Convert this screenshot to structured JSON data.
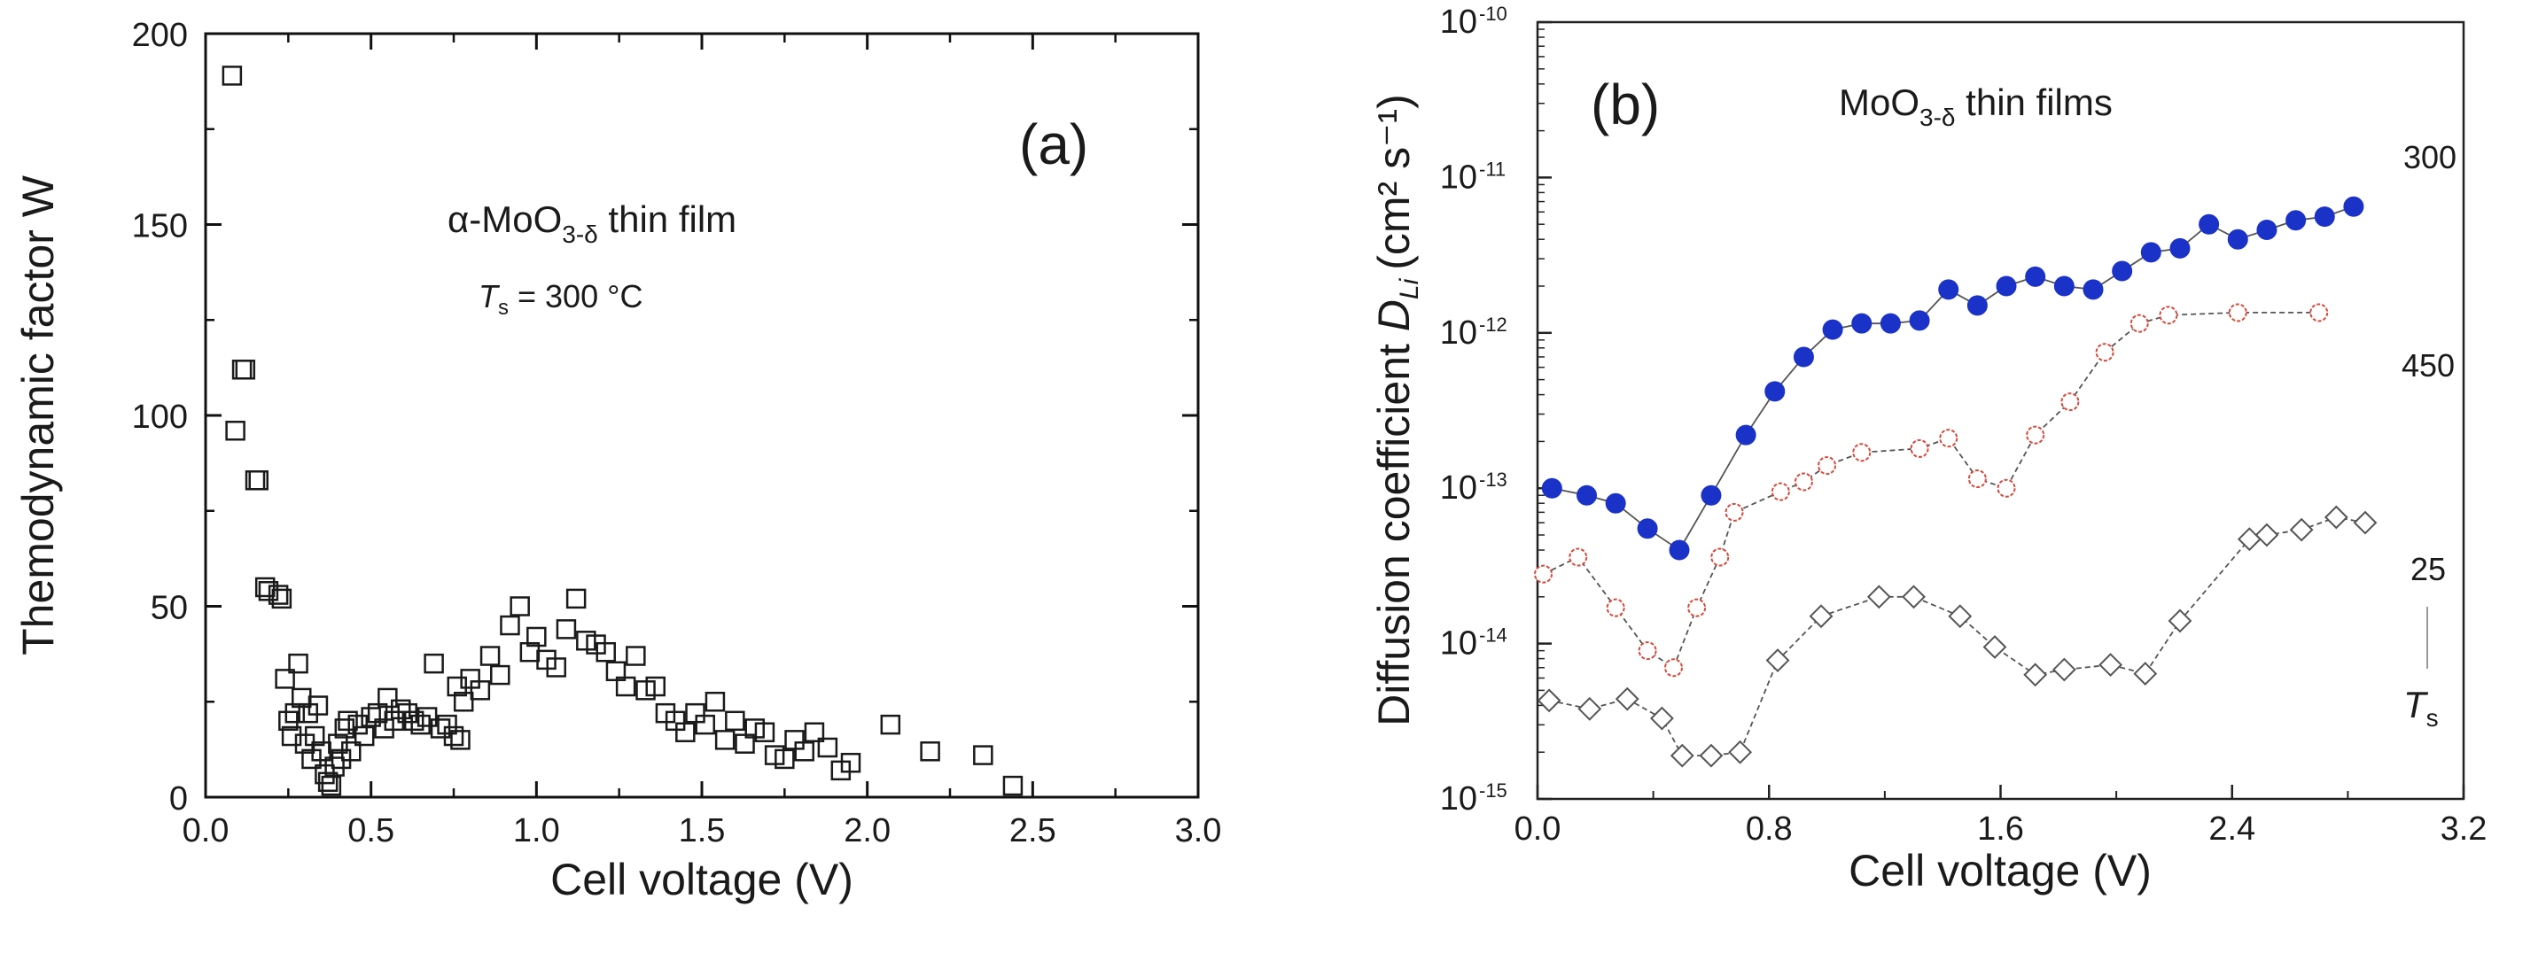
{
  "chart_data": [
    {
      "type": "scatter",
      "panel_label": "(a)",
      "title": "",
      "xlabel": "Cell voltage (V)",
      "ylabel": "Themodynamic factor W",
      "xlim": [
        0.0,
        3.0
      ],
      "ylim": [
        0,
        200
      ],
      "x_ticks": [
        "0.0",
        "0.5",
        "1.0",
        "1.5",
        "2.0",
        "2.5",
        "3.0"
      ],
      "y_ticks": [
        "0",
        "50",
        "100",
        "150",
        "200"
      ],
      "annotation": {
        "prefix": "α-MoO",
        "sub": "3-δ",
        "suffix": " thin film"
      },
      "ts_annotation": {
        "symbol": "T",
        "sub": "s",
        "value": " = 300 °C"
      },
      "marker": "open-square",
      "series": [
        {
          "name": "W",
          "points": [
            [
              0.08,
              189
            ],
            [
              0.09,
              96
            ],
            [
              0.11,
              112
            ],
            [
              0.12,
              112
            ],
            [
              0.15,
              83
            ],
            [
              0.16,
              83
            ],
            [
              0.18,
              55
            ],
            [
              0.19,
              54
            ],
            [
              0.22,
              53
            ],
            [
              0.23,
              52
            ],
            [
              0.24,
              31
            ],
            [
              0.25,
              20
            ],
            [
              0.26,
              16
            ],
            [
              0.27,
              22
            ],
            [
              0.28,
              35
            ],
            [
              0.29,
              26
            ],
            [
              0.3,
              14
            ],
            [
              0.31,
              22
            ],
            [
              0.32,
              10
            ],
            [
              0.33,
              16
            ],
            [
              0.34,
              24
            ],
            [
              0.35,
              12
            ],
            [
              0.36,
              6
            ],
            [
              0.37,
              4
            ],
            [
              0.38,
              3
            ],
            [
              0.39,
              8
            ],
            [
              0.4,
              14
            ],
            [
              0.41,
              10
            ],
            [
              0.42,
              18
            ],
            [
              0.43,
              20
            ],
            [
              0.44,
              12
            ],
            [
              0.46,
              19
            ],
            [
              0.48,
              16
            ],
            [
              0.5,
              21
            ],
            [
              0.52,
              22
            ],
            [
              0.54,
              18
            ],
            [
              0.55,
              26
            ],
            [
              0.57,
              20
            ],
            [
              0.59,
              23
            ],
            [
              0.61,
              22
            ],
            [
              0.63,
              20
            ],
            [
              0.65,
              19
            ],
            [
              0.67,
              21
            ],
            [
              0.69,
              35
            ],
            [
              0.71,
              18
            ],
            [
              0.73,
              19
            ],
            [
              0.75,
              16
            ],
            [
              0.77,
              15
            ],
            [
              0.76,
              29
            ],
            [
              0.78,
              25
            ],
            [
              0.8,
              31
            ],
            [
              0.83,
              28
            ],
            [
              0.86,
              37
            ],
            [
              0.89,
              32
            ],
            [
              0.92,
              45
            ],
            [
              0.95,
              50
            ],
            [
              0.98,
              38
            ],
            [
              1.0,
              42
            ],
            [
              1.03,
              36
            ],
            [
              1.06,
              34
            ],
            [
              1.09,
              44
            ],
            [
              1.12,
              52
            ],
            [
              1.15,
              41
            ],
            [
              1.18,
              40
            ],
            [
              1.21,
              38
            ],
            [
              1.24,
              33
            ],
            [
              1.27,
              29
            ],
            [
              1.3,
              37
            ],
            [
              1.33,
              28
            ],
            [
              1.36,
              29
            ],
            [
              1.39,
              22
            ],
            [
              1.42,
              20
            ],
            [
              1.45,
              17
            ],
            [
              1.48,
              22
            ],
            [
              1.51,
              19
            ],
            [
              1.54,
              25
            ],
            [
              1.57,
              15
            ],
            [
              1.6,
              20
            ],
            [
              1.63,
              14
            ],
            [
              1.66,
              18
            ],
            [
              1.69,
              17
            ],
            [
              1.72,
              11
            ],
            [
              1.75,
              10
            ],
            [
              1.78,
              15
            ],
            [
              1.81,
              12
            ],
            [
              1.84,
              17
            ],
            [
              1.88,
              13
            ],
            [
              1.92,
              7
            ],
            [
              1.95,
              9
            ],
            [
              2.07,
              19
            ],
            [
              2.19,
              12
            ],
            [
              2.35,
              11
            ],
            [
              2.44,
              3
            ]
          ]
        }
      ]
    },
    {
      "type": "line",
      "panel_label": "(b)",
      "title": "",
      "xlabel": "Cell voltage (V)",
      "ylabel": {
        "prefix": "Diffusion coefficient ",
        "var": "D",
        "var_sub": "Li",
        "units": "(cm² s⁻¹)"
      },
      "x_scale": "linear",
      "y_scale": "log",
      "xlim": [
        0.0,
        3.2
      ],
      "ylim": [
        1e-15,
        1e-10
      ],
      "x_ticks": [
        "0.0",
        "0.8",
        "1.6",
        "2.4",
        "3.2"
      ],
      "y_ticks": [
        {
          "base": "10",
          "exp": "-15"
        },
        {
          "base": "10",
          "exp": "-14"
        },
        {
          "base": "10",
          "exp": "-13"
        },
        {
          "base": "10",
          "exp": "-12"
        },
        {
          "base": "10",
          "exp": "-11"
        },
        {
          "base": "10",
          "exp": "-10"
        }
      ],
      "annotation": {
        "prefix": "MoO",
        "sub": "3-δ",
        "suffix": " thin films"
      },
      "ts_label": {
        "symbol": "T",
        "sub": "s"
      },
      "series": [
        {
          "name": "300",
          "marker": "filled-circle",
          "color": "#1a32c8",
          "x": [
            0.05,
            0.17,
            0.27,
            0.38,
            0.49,
            0.6,
            0.72,
            0.82,
            0.92,
            1.02,
            1.12,
            1.22,
            1.32,
            1.42,
            1.52,
            1.62,
            1.72,
            1.82,
            1.92,
            2.02,
            2.12,
            2.22,
            2.32,
            2.42,
            2.52,
            2.62,
            2.72,
            2.82
          ],
          "y": [
            1e-13,
            9e-14,
            8e-14,
            5.5e-14,
            4e-14,
            9e-14,
            2.2e-13,
            4.2e-13,
            7e-13,
            1.05e-12,
            1.15e-12,
            1.15e-12,
            1.2e-12,
            1.9e-12,
            1.5e-12,
            2e-12,
            2.3e-12,
            2e-12,
            1.9e-12,
            2.5e-12,
            3.3e-12,
            3.5e-12,
            5e-12,
            4e-12,
            4.6e-12,
            5.3e-12,
            5.6e-12,
            6.5e-12
          ]
        },
        {
          "name": "450",
          "marker": "open-circle",
          "color": "#d44a3c",
          "x": [
            0.02,
            0.14,
            0.27,
            0.38,
            0.47,
            0.55,
            0.63,
            0.68,
            0.84,
            0.92,
            1.0,
            1.12,
            1.32,
            1.42,
            1.52,
            1.62,
            1.72,
            1.84,
            1.96,
            2.08,
            2.18,
            2.42,
            2.7
          ],
          "y": [
            2.8e-14,
            3.6e-14,
            1.7e-14,
            9e-15,
            7e-15,
            1.7e-14,
            3.6e-14,
            7e-14,
            9.5e-14,
            1.1e-13,
            1.4e-13,
            1.7e-13,
            1.8e-13,
            2.1e-13,
            1.15e-13,
            1e-13,
            2.2e-13,
            3.6e-13,
            7.5e-13,
            1.15e-12,
            1.3e-12,
            1.35e-12,
            1.35e-12
          ]
        },
        {
          "name": "25",
          "marker": "open-diamond",
          "color": "#555555",
          "x": [
            0.04,
            0.18,
            0.31,
            0.43,
            0.5,
            0.6,
            0.7,
            0.83,
            0.98,
            1.18,
            1.3,
            1.46,
            1.58,
            1.72,
            1.82,
            1.98,
            2.1,
            2.22,
            2.46,
            2.52,
            2.64,
            2.76,
            2.86
          ],
          "y": [
            4.3e-15,
            3.8e-15,
            4.4e-15,
            3.3e-15,
            1.9e-15,
            1.9e-15,
            2e-15,
            7.8e-15,
            1.5e-14,
            2e-14,
            2e-14,
            1.5e-14,
            9.5e-15,
            6.3e-15,
            6.8e-15,
            7.3e-15,
            6.4e-15,
            1.4e-14,
            4.7e-14,
            5e-14,
            5.4e-14,
            6.5e-14,
            6e-14
          ]
        }
      ]
    }
  ]
}
